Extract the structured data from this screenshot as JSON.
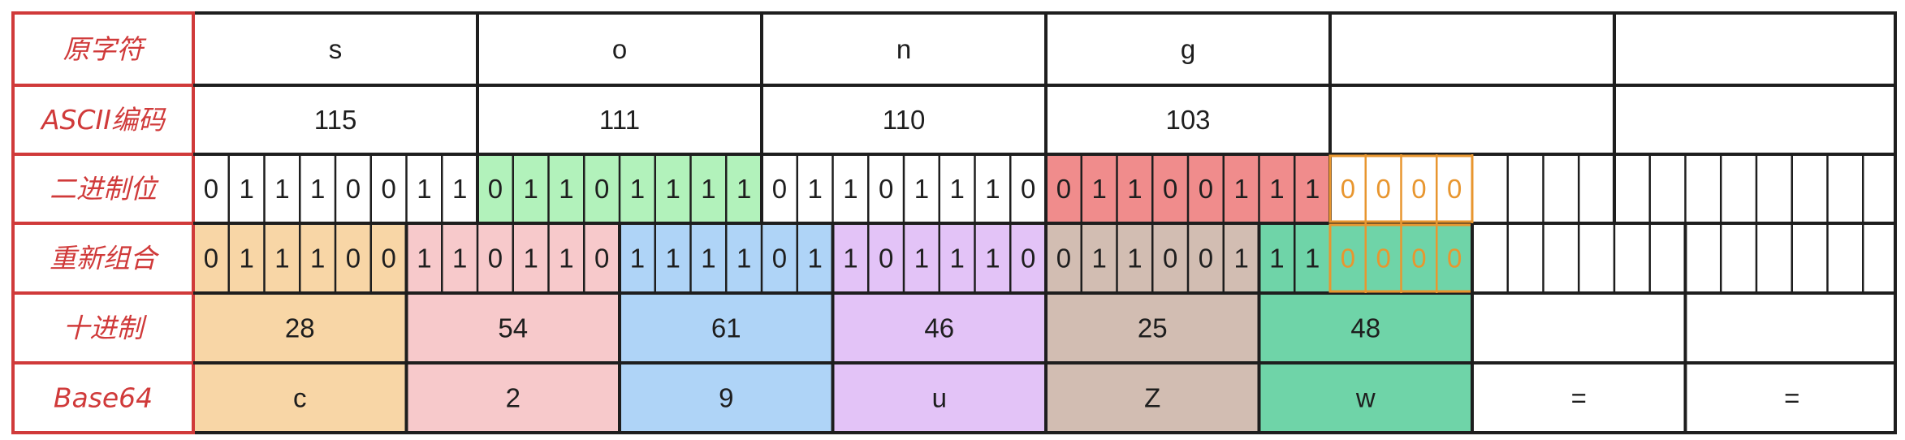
{
  "row_labels": [
    "原字符",
    "ASCII编码",
    "二进制位",
    "重新组合",
    "十进制",
    "Base64"
  ],
  "chars": [
    "s",
    "o",
    "n",
    "g",
    "",
    ""
  ],
  "ascii": [
    "115",
    "111",
    "110",
    "103",
    "",
    ""
  ],
  "binary_bits": [
    "0",
    "1",
    "1",
    "1",
    "0",
    "0",
    "1",
    "1",
    "0",
    "1",
    "1",
    "0",
    "1",
    "1",
    "1",
    "1",
    "0",
    "1",
    "1",
    "0",
    "1",
    "1",
    "1",
    "0",
    "0",
    "1",
    "1",
    "0",
    "0",
    "1",
    "1",
    "1",
    "0",
    "0",
    "0",
    "0"
  ],
  "regroup_bits": [
    "0",
    "1",
    "1",
    "1",
    "0",
    "0",
    "1",
    "1",
    "0",
    "1",
    "1",
    "0",
    "1",
    "1",
    "1",
    "1",
    "0",
    "1",
    "1",
    "0",
    "1",
    "1",
    "1",
    "0",
    "0",
    "1",
    "1",
    "0",
    "0",
    "1",
    "1",
    "1",
    "0",
    "0",
    "0",
    "0"
  ],
  "decimal": [
    "28",
    "54",
    "61",
    "46",
    "25",
    "48",
    "",
    ""
  ],
  "base64": [
    "c",
    "2",
    "9",
    "u",
    "Z",
    "w",
    "=",
    "="
  ],
  "colors": {
    "label": "#d03a3a",
    "byte_o": "#b2f2bb",
    "byte_g": "#f08c8c",
    "padding_stroke": "#e8962f",
    "group1": "#f8d6a6",
    "group2": "#f7c9cb",
    "group3": "#afd4f7",
    "group4": "#e3c3f7",
    "group5": "#d2bdb2",
    "group6": "#6fd4a8"
  }
}
